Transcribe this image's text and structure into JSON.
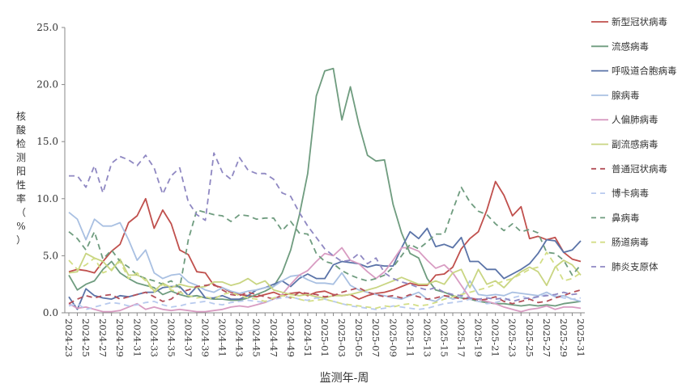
{
  "chart_data": {
    "type": "line",
    "title": "",
    "xlabel": "监测年-周",
    "ylabel": "核酸检测阳性率（%）",
    "ylim": [
      0,
      25
    ],
    "yticks": [
      "0.0",
      "5.0",
      "10.0",
      "15.0",
      "20.0",
      "25.0"
    ],
    "legend_position": "right",
    "grid": false,
    "x": [
      "2024-23",
      "2024-24",
      "2024-25",
      "2024-26",
      "2024-27",
      "2024-28",
      "2024-29",
      "2024-30",
      "2024-31",
      "2024-32",
      "2024-33",
      "2024-34",
      "2024-35",
      "2024-36",
      "2024-37",
      "2024-38",
      "2024-39",
      "2024-40",
      "2024-41",
      "2024-42",
      "2024-43",
      "2024-44",
      "2024-45",
      "2024-46",
      "2024-47",
      "2024-48",
      "2024-49",
      "2024-50",
      "2024-51",
      "2024-52",
      "2025-01",
      "2025-02",
      "2025-03",
      "2025-04",
      "2025-05",
      "2025-06",
      "2025-07",
      "2025-08",
      "2025-09",
      "2025-10",
      "2025-11",
      "2025-12",
      "2025-13",
      "2025-14",
      "2025-15",
      "2025-16",
      "2025-17",
      "2025-18",
      "2025-19",
      "2025-20",
      "2025-21",
      "2025-22",
      "2025-23",
      "2025-24",
      "2025-25",
      "2025-26",
      "2025-27",
      "2025-28",
      "2025-29",
      "2025-30",
      "2025-31"
    ],
    "series": [
      {
        "name": "新型冠状病毒",
        "color": "#c0504d",
        "dash": false,
        "values": [
          3.6,
          3.8,
          3.7,
          3.5,
          4.5,
          5.4,
          6.0,
          7.9,
          8.5,
          10.0,
          7.4,
          9.0,
          7.8,
          5.5,
          5.1,
          3.6,
          3.5,
          2.4,
          2.2,
          1.8,
          1.6,
          1.5,
          1.4,
          1.6,
          1.8,
          1.5,
          1.7,
          1.8,
          1.5,
          1.8,
          1.9,
          1.6,
          1.5,
          1.6,
          1.2,
          1.5,
          1.7,
          1.8,
          2.0,
          2.3,
          2.6,
          2.4,
          2.4,
          3.3,
          3.4,
          4.0,
          5.6,
          6.5,
          7.1,
          9.0,
          11.5,
          10.3,
          8.5,
          9.3,
          6.5,
          6.7,
          6.4,
          6.6,
          5.3,
          4.7,
          4.5
        ]
      },
      {
        "name": "流感病毒",
        "color": "#6f9c7f",
        "dash": false,
        "values": [
          3.3,
          2.0,
          2.5,
          2.8,
          3.8,
          4.5,
          3.5,
          3.0,
          2.6,
          2.4,
          2.2,
          1.6,
          1.9,
          1.6,
          1.4,
          1.5,
          1.3,
          1.2,
          1.2,
          1.1,
          1.1,
          1.3,
          1.6,
          1.9,
          2.3,
          3.5,
          5.5,
          8.5,
          12.2,
          19.0,
          21.2,
          21.4,
          16.9,
          19.8,
          16.5,
          13.8,
          13.3,
          13.4,
          9.5,
          7.0,
          5.2,
          4.8,
          3.0,
          2.0,
          1.8,
          1.5,
          1.3,
          1.2,
          1.0,
          0.9,
          0.8,
          0.8,
          0.7,
          0.6,
          0.7,
          0.6,
          0.7,
          0.6,
          0.8,
          0.9,
          1.0
        ]
      },
      {
        "name": "呼吸道合胞病毒",
        "color": "#5b74a8",
        "dash": false,
        "values": [
          1.4,
          0.3,
          2.1,
          1.5,
          1.3,
          1.2,
          1.5,
          1.4,
          1.6,
          1.8,
          1.8,
          2.2,
          2.3,
          2.3,
          1.5,
          2.3,
          1.3,
          1.3,
          1.5,
          1.2,
          1.2,
          1.5,
          2.0,
          2.2,
          2.5,
          2.8,
          2.3,
          3.0,
          3.4,
          3.0,
          3.0,
          4.2,
          4.5,
          4.4,
          4.3,
          4.0,
          4.2,
          4.1,
          4.1,
          5.7,
          7.1,
          6.5,
          7.4,
          5.8,
          6.0,
          5.7,
          6.6,
          4.5,
          4.5,
          3.8,
          3.8,
          3.0,
          3.4,
          3.8,
          4.3,
          5.2,
          6.4,
          6.3,
          5.3,
          5.5,
          6.3
        ]
      },
      {
        "name": "腺病毒",
        "color": "#a9c0e2",
        "dash": false,
        "values": [
          8.8,
          8.2,
          6.4,
          8.2,
          7.6,
          7.6,
          7.9,
          6.4,
          4.6,
          5.5,
          3.5,
          3.0,
          3.3,
          3.4,
          2.7,
          2.4,
          2.0,
          1.8,
          2.2,
          1.9,
          1.7,
          1.9,
          2.0,
          2.2,
          2.3,
          2.8,
          3.2,
          3.3,
          2.9,
          2.6,
          2.6,
          2.5,
          3.5,
          2.4,
          2.0,
          1.8,
          1.6,
          1.5,
          1.3,
          1.2,
          1.5,
          1.8,
          1.2,
          1.0,
          1.5,
          1.2,
          1.4,
          2.8,
          1.6,
          1.5,
          1.6,
          1.5,
          1.8,
          1.7,
          1.6,
          1.5,
          1.8,
          1.4,
          1.5,
          1.2,
          1.0
        ]
      },
      {
        "name": "人偏肺病毒",
        "color": "#d89cc2",
        "dash": false,
        "values": [
          0.8,
          0.4,
          0.5,
          0.3,
          0.1,
          0.1,
          0.2,
          0.5,
          0.8,
          0.3,
          0.5,
          0.3,
          0.2,
          0.3,
          0.2,
          0.1,
          0.1,
          0.2,
          0.3,
          0.5,
          0.6,
          0.5,
          0.7,
          0.9,
          1.2,
          1.6,
          2.5,
          3.3,
          3.7,
          4.5,
          5.2,
          5.0,
          5.7,
          4.6,
          4.3,
          3.6,
          3.0,
          3.6,
          4.6,
          5.7,
          5.7,
          5.4,
          4.6,
          3.9,
          4.2,
          3.5,
          2.4,
          1.3,
          1.2,
          1.0,
          0.8,
          0.5,
          0.3,
          0.1,
          0.3,
          0.4,
          0.6,
          0.3,
          0.5,
          0.5,
          0.4
        ]
      },
      {
        "name": "副流感病毒",
        "color": "#c9d582",
        "dash": false,
        "values": [
          3.5,
          3.6,
          5.2,
          4.8,
          4.5,
          3.7,
          4.7,
          3.3,
          3.3,
          3.0,
          1.9,
          2.6,
          2.2,
          2.5,
          2.3,
          2.2,
          2.3,
          2.7,
          2.7,
          2.4,
          2.6,
          3.0,
          2.5,
          2.8,
          2.0,
          1.8,
          1.6,
          1.5,
          1.6,
          1.4,
          1.3,
          1.5,
          1.5,
          1.6,
          1.8,
          2.0,
          2.2,
          2.5,
          2.8,
          3.1,
          2.8,
          2.5,
          2.5,
          2.8,
          2.5,
          3.5,
          3.8,
          2.2,
          3.8,
          2.5,
          2.8,
          2.2,
          3.0,
          3.6,
          4.0,
          3.6,
          2.4,
          4.0,
          4.6,
          4.2,
          3.3
        ]
      },
      {
        "name": "普通冠状病毒",
        "color": "#b4505a",
        "dash": true,
        "values": [
          0.8,
          1.2,
          1.5,
          1.3,
          1.5,
          1.6,
          1.2,
          1.4,
          1.6,
          1.8,
          1.4,
          1.0,
          1.2,
          1.8,
          2.0,
          2.3,
          2.4,
          2.5,
          2.0,
          1.6,
          1.5,
          1.8,
          1.6,
          1.4,
          1.2,
          1.5,
          1.3,
          1.8,
          1.7,
          1.6,
          1.4,
          1.5,
          1.8,
          2.0,
          2.2,
          1.8,
          1.6,
          1.4,
          1.5,
          1.3,
          1.6,
          1.4,
          1.2,
          1.3,
          1.5,
          1.4,
          1.2,
          1.3,
          1.1,
          1.2,
          1.4,
          1.0,
          0.8,
          1.0,
          1.2,
          0.9,
          1.0,
          1.3,
          1.5,
          1.8,
          2.0
        ]
      },
      {
        "name": "博卡病毒",
        "color": "#b8caee",
        "dash": true,
        "values": [
          0.6,
          0.8,
          0.3,
          0.5,
          0.7,
          0.9,
          0.8,
          0.6,
          0.7,
          0.9,
          1.0,
          0.7,
          0.5,
          0.6,
          0.8,
          0.9,
          1.0,
          0.8,
          0.7,
          0.9,
          1.0,
          1.1,
          1.0,
          0.9,
          1.2,
          1.3,
          1.4,
          1.2,
          1.1,
          1.3,
          1.2,
          1.0,
          0.8,
          0.6,
          0.5,
          0.4,
          0.3,
          0.4,
          0.6,
          0.5,
          0.4,
          0.3,
          0.4,
          0.6,
          0.8,
          0.9,
          1.0,
          1.2,
          1.0,
          0.8,
          0.9,
          1.1,
          1.3,
          1.5,
          1.2,
          1.4,
          1.6,
          1.5,
          1.3,
          1.2,
          1.3
        ]
      },
      {
        "name": "鼻病毒",
        "color": "#6f9c7f",
        "dash": true,
        "values": [
          7.1,
          6.5,
          5.5,
          7.1,
          4.7,
          5.5,
          4.5,
          4.0,
          3.3,
          3.0,
          2.8,
          2.5,
          2.8,
          2.2,
          6.4,
          9.0,
          8.8,
          8.6,
          8.5,
          8.0,
          8.6,
          8.5,
          8.2,
          8.3,
          8.3,
          7.2,
          8.0,
          7.0,
          6.9,
          5.2,
          4.5,
          4.3,
          3.7,
          3.3,
          3.0,
          2.8,
          3.0,
          3.3,
          4.0,
          5.0,
          6.0,
          5.6,
          6.2,
          6.9,
          6.9,
          9.0,
          11.0,
          9.7,
          8.9,
          8.6,
          7.8,
          7.2,
          7.8,
          7.1,
          7.3,
          7.0,
          5.3,
          5.2,
          4.6,
          3.3,
          4.2
        ]
      },
      {
        "name": "肠道病毒",
        "color": "#d3de86",
        "dash": true,
        "values": [
          4.6,
          3.8,
          4.2,
          4.8,
          3.5,
          3.8,
          4.5,
          3.0,
          3.5,
          2.8,
          1.8,
          2.5,
          2.0,
          1.8,
          1.5,
          1.3,
          1.4,
          1.2,
          1.6,
          1.8,
          1.5,
          1.3,
          1.2,
          1.0,
          1.3,
          1.5,
          1.4,
          1.2,
          1.0,
          1.1,
          1.2,
          1.0,
          0.8,
          0.7,
          0.6,
          0.5,
          0.4,
          0.6,
          0.5,
          0.7,
          0.8,
          0.6,
          0.7,
          0.9,
          1.2,
          1.4,
          1.6,
          1.8,
          2.0,
          2.2,
          2.5,
          2.8,
          3.0,
          3.4,
          3.8,
          4.0,
          5.3,
          4.2,
          2.8,
          3.0,
          3.5
        ]
      },
      {
        "name": "肺炎支原体",
        "color": "#8f88c2",
        "dash": true,
        "values": [
          12.0,
          12.0,
          11.0,
          12.9,
          10.5,
          13.1,
          13.7,
          13.4,
          12.9,
          13.8,
          12.7,
          10.4,
          12.0,
          12.7,
          9.7,
          8.6,
          8.1,
          14.0,
          12.3,
          11.7,
          13.6,
          12.5,
          12.2,
          12.2,
          11.7,
          10.5,
          10.2,
          8.8,
          7.6,
          6.6,
          5.6,
          5.0,
          4.5,
          4.6,
          5.2,
          4.3,
          4.8,
          3.5,
          3.0,
          2.7,
          2.5,
          2.2,
          2.0,
          2.2,
          1.8,
          1.6,
          1.5,
          1.3,
          1.2,
          1.3,
          1.2,
          1.3,
          1.0,
          1.2,
          1.3,
          1.4,
          1.5,
          1.6,
          1.8,
          1.6,
          1.7
        ]
      }
    ]
  }
}
